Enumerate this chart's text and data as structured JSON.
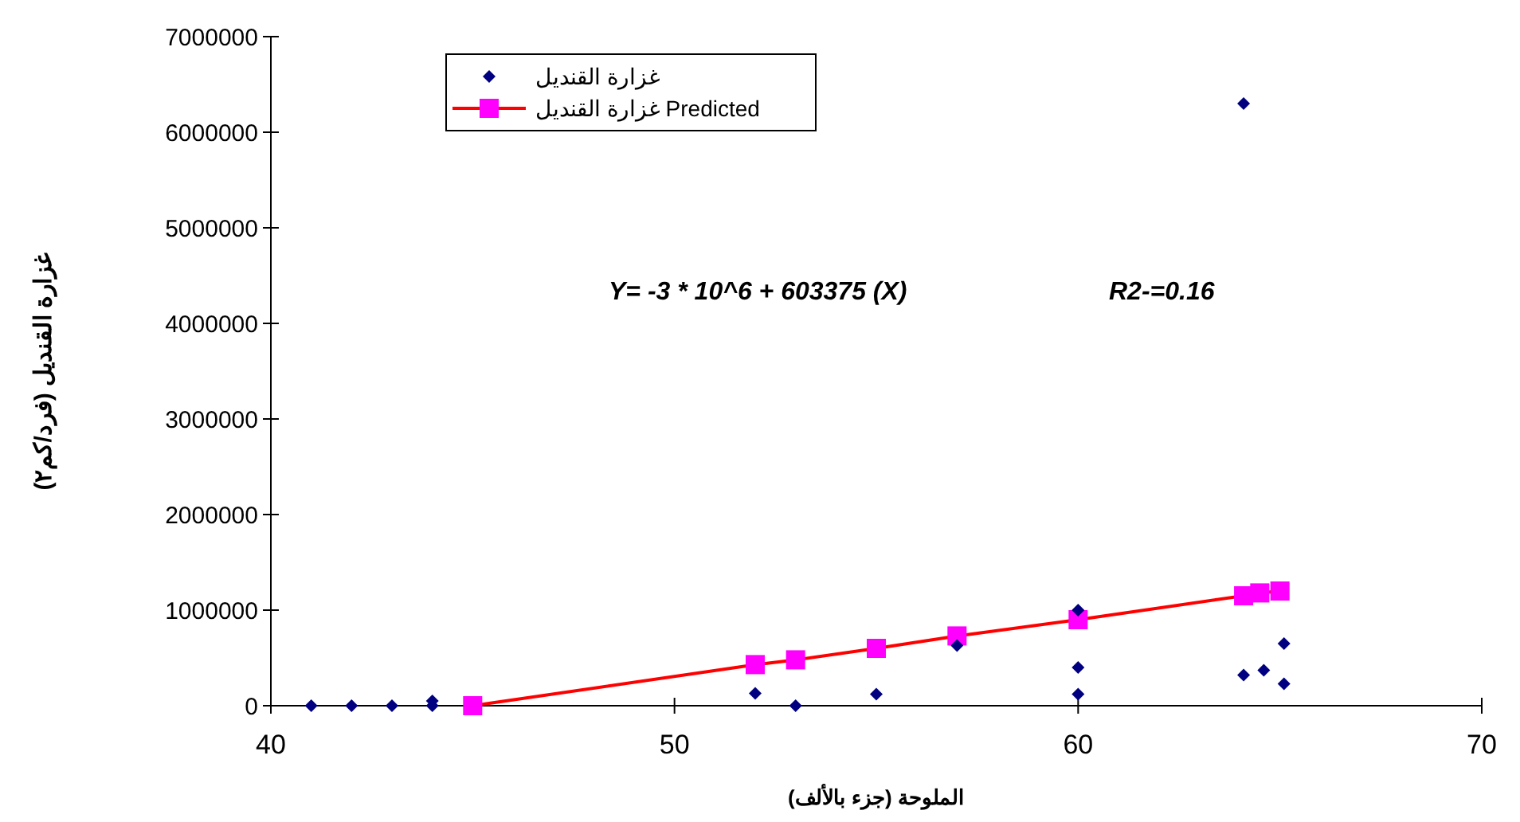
{
  "chart_data": {
    "type": "scatter",
    "xlabel": "الملوحة (جزء بالألف)",
    "ylabel": "غزارة القنديل (فرد/كم٢)",
    "annotations": [
      "Y= -3 * 10^6 + 603375 (X)",
      "R2-=0.16"
    ],
    "xlim": [
      40,
      70
    ],
    "xticks": [
      40,
      50,
      60,
      70
    ],
    "ylim": [
      0,
      7000000
    ],
    "yticks": [
      0,
      1000000,
      2000000,
      3000000,
      4000000,
      5000000,
      6000000,
      7000000
    ],
    "grid": false,
    "legend": "top",
    "marker": "diamond",
    "series": [
      {
        "name": "غزارة القنديل",
        "color": "#000080",
        "x": [
          41,
          42,
          43,
          44,
          44,
          52,
          53,
          55,
          57,
          60,
          60,
          60,
          64.1,
          64.1,
          64.6,
          65.1,
          65.1
        ],
        "values": [
          0,
          0,
          0,
          0,
          50000,
          130000,
          0,
          120000,
          630000,
          1000000,
          400000,
          120000,
          6300000,
          320000,
          370000,
          650000,
          230000
        ]
      },
      {
        "name": "غزارة القنديل Predicted",
        "type": "line",
        "marker": "square",
        "color": "#ff0000",
        "colors": [
          "#ff00ff",
          "#ff00ff",
          "#ff00ff",
          "#ff00ff",
          "#ff00ff",
          "#ff00ff",
          "#ff00ff",
          "#ff00ff",
          "#ff00ff"
        ],
        "x": [
          45,
          52,
          53,
          55,
          57,
          60,
          64.1,
          64.5,
          65
        ],
        "values": [
          0,
          430000,
          480000,
          600000,
          730000,
          900000,
          1150000,
          1180000,
          1200000
        ]
      }
    ]
  }
}
